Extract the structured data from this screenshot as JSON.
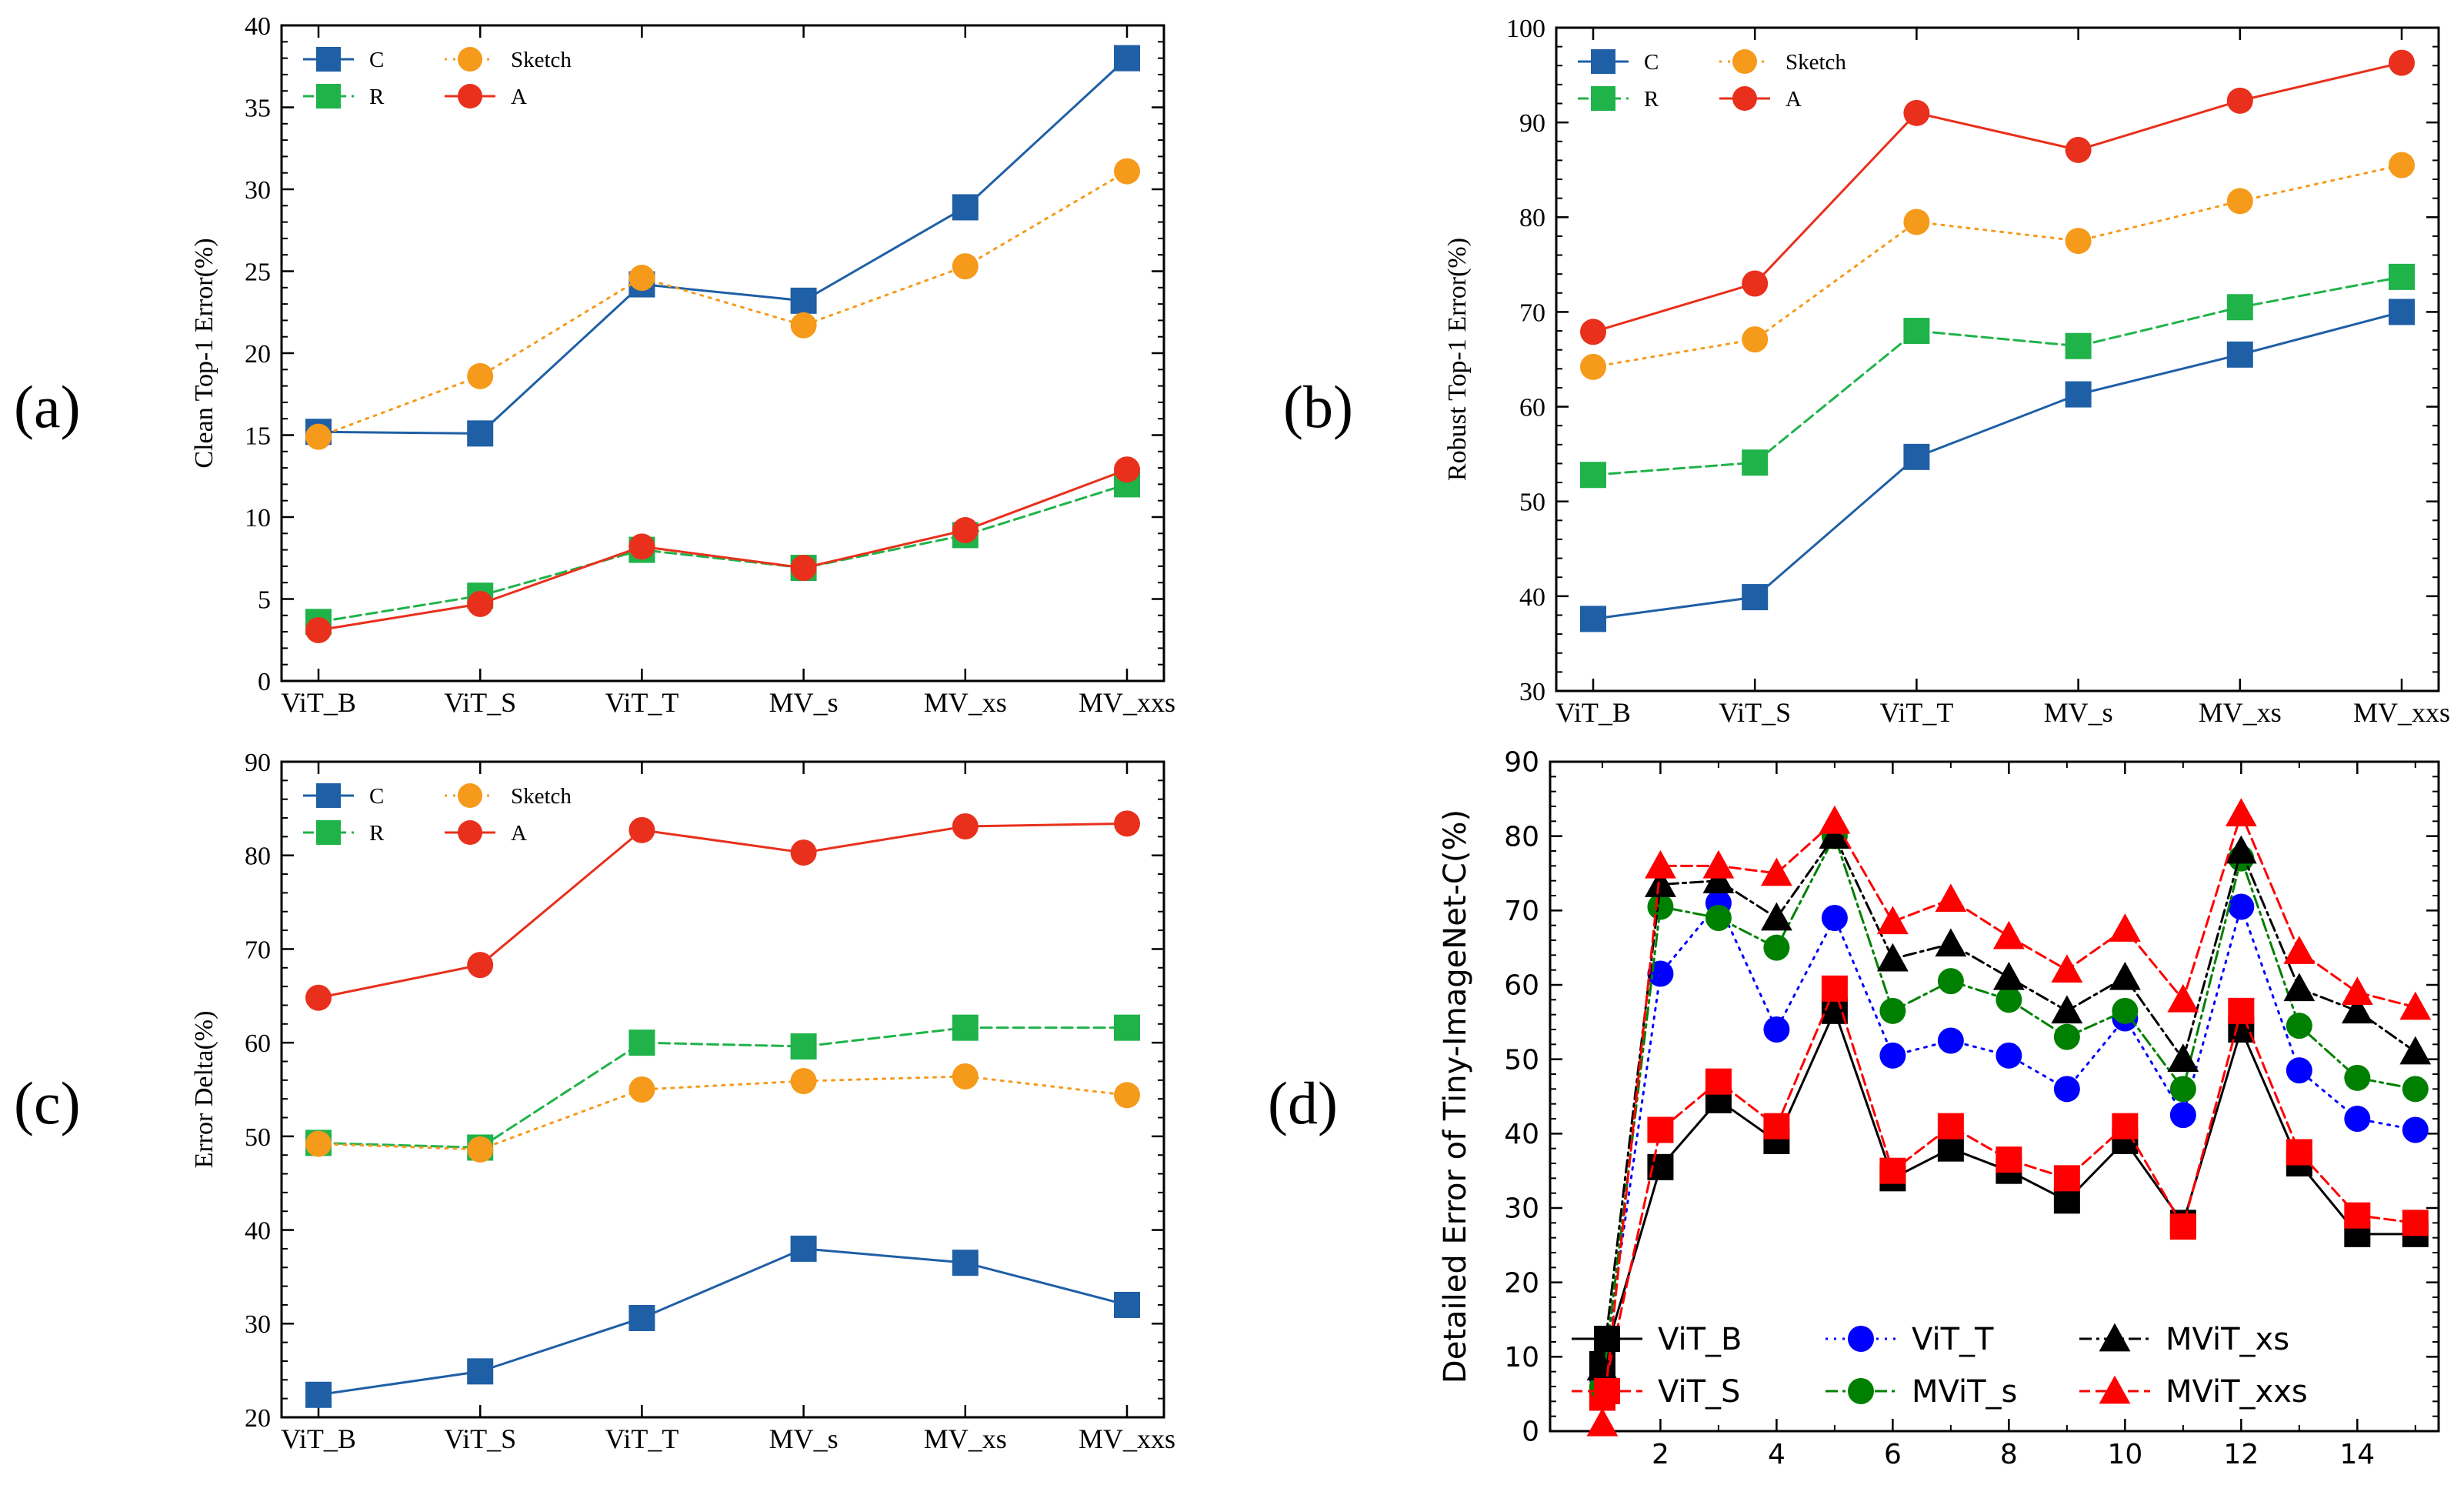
{
  "panel_labels": [
    "(a)",
    "(b)",
    "(c)",
    "(d)"
  ],
  "chart_data": [
    {
      "id": "a",
      "type": "line",
      "title": "",
      "xlabel": "",
      "ylabel": "Clean Top-1 Error(%)",
      "categories": [
        "ViT_B",
        "ViT_S",
        "ViT_T",
        "MV_s",
        "MV_xs",
        "MV_xxs"
      ],
      "ylim": [
        0,
        40
      ],
      "yticks": [
        0,
        5,
        10,
        15,
        20,
        25,
        30,
        35,
        40
      ],
      "legend_position": "top-left",
      "series": [
        {
          "name": "C",
          "color": "#1f5fa6",
          "marker": "square",
          "dash": "solid",
          "values": [
            15.2,
            15.1,
            24.2,
            23.2,
            28.9,
            38.0
          ]
        },
        {
          "name": "R",
          "color": "#1fb34a",
          "marker": "square",
          "dash": "dashed",
          "values": [
            3.6,
            5.2,
            8.0,
            6.9,
            8.9,
            12.0
          ]
        },
        {
          "name": "Sketch",
          "color": "#f59a1a",
          "marker": "circle",
          "dash": "dotted",
          "values": [
            14.9,
            18.6,
            24.6,
            21.7,
            25.3,
            31.1
          ]
        },
        {
          "name": "A",
          "color": "#e8301c",
          "marker": "circle",
          "dash": "solid",
          "values": [
            3.1,
            4.7,
            8.2,
            6.9,
            9.2,
            12.9
          ]
        }
      ]
    },
    {
      "id": "b",
      "type": "line",
      "title": "",
      "xlabel": "",
      "ylabel": "Robust Top-1 Error(%)",
      "categories": [
        "ViT_B",
        "ViT_S",
        "ViT_T",
        "MV_s",
        "MV_xs",
        "MV_xxs"
      ],
      "ylim": [
        30,
        100
      ],
      "yticks": [
        30,
        40,
        50,
        60,
        70,
        80,
        90,
        100
      ],
      "legend_position": "top-left",
      "series": [
        {
          "name": "C",
          "color": "#1f5fa6",
          "marker": "square",
          "dash": "solid",
          "values": [
            37.6,
            39.9,
            54.7,
            61.3,
            65.5,
            70.0
          ]
        },
        {
          "name": "R",
          "color": "#1fb34a",
          "marker": "square",
          "dash": "dashed",
          "values": [
            52.8,
            54.1,
            68.0,
            66.4,
            70.5,
            73.7
          ]
        },
        {
          "name": "Sketch",
          "color": "#f59a1a",
          "marker": "circle",
          "dash": "dotted",
          "values": [
            64.2,
            67.1,
            79.5,
            77.5,
            81.7,
            85.5
          ]
        },
        {
          "name": "A",
          "color": "#e8301c",
          "marker": "circle",
          "dash": "solid",
          "values": [
            67.9,
            73.0,
            91.0,
            87.1,
            92.3,
            96.3
          ]
        }
      ]
    },
    {
      "id": "c",
      "type": "line",
      "title": "",
      "xlabel": "",
      "ylabel": "Error Delta(%)",
      "categories": [
        "ViT_B",
        "ViT_S",
        "ViT_T",
        "MV_s",
        "MV_xs",
        "MV_xxs"
      ],
      "ylim": [
        20,
        90
      ],
      "yticks": [
        20,
        30,
        40,
        50,
        60,
        70,
        80,
        90
      ],
      "legend_position": "top-left",
      "series": [
        {
          "name": "C",
          "color": "#1f5fa6",
          "marker": "square",
          "dash": "solid",
          "values": [
            22.4,
            24.9,
            30.6,
            38.0,
            36.5,
            32.0
          ]
        },
        {
          "name": "R",
          "color": "#1fb34a",
          "marker": "square",
          "dash": "dashed",
          "values": [
            49.3,
            48.8,
            60.0,
            59.6,
            61.6,
            61.6
          ]
        },
        {
          "name": "Sketch",
          "color": "#f59a1a",
          "marker": "circle",
          "dash": "dotted",
          "values": [
            49.2,
            48.6,
            55.0,
            55.9,
            56.4,
            54.4
          ]
        },
        {
          "name": "A",
          "color": "#e8301c",
          "marker": "circle",
          "dash": "solid",
          "values": [
            64.8,
            68.3,
            82.7,
            80.3,
            83.1,
            83.4
          ]
        }
      ]
    },
    {
      "id": "d",
      "type": "line",
      "title": "",
      "xlabel": "",
      "ylabel": "Detailed Error of Tiny-ImageNet-C(%)",
      "x": [
        1,
        2,
        3,
        4,
        5,
        6,
        7,
        8,
        9,
        10,
        11,
        12,
        13,
        14,
        15
      ],
      "xlim": [
        0.1,
        15.4
      ],
      "xticks": [
        2,
        4,
        6,
        8,
        10,
        12,
        14
      ],
      "ylim": [
        0,
        90
      ],
      "yticks": [
        0,
        10,
        20,
        30,
        40,
        50,
        60,
        70,
        80,
        90
      ],
      "legend_position": "bottom",
      "series": [
        {
          "name": "ViT_B",
          "color": "#000000",
          "marker": "square",
          "dash": "solid",
          "values": [
            9.0,
            35.5,
            44.5,
            39.0,
            56.5,
            34.0,
            38.0,
            35.0,
            31.0,
            39.0,
            28.0,
            54.0,
            36.0,
            26.5,
            26.5
          ]
        },
        {
          "name": "ViT_S",
          "color": "#ff0000",
          "marker": "square",
          "dash": "dashed",
          "values": [
            4.5,
            40.5,
            47.0,
            41.0,
            59.5,
            35.0,
            41.0,
            36.5,
            34.0,
            41.0,
            27.5,
            56.5,
            37.5,
            29.0,
            28.0
          ]
        },
        {
          "name": "ViT_T",
          "color": "#0000ff",
          "marker": "circle",
          "dash": "dotted",
          "values": [
            7.0,
            61.5,
            71.0,
            54.0,
            69.0,
            50.5,
            52.5,
            50.5,
            46.0,
            55.5,
            42.5,
            70.5,
            48.5,
            42.0,
            40.5
          ]
        },
        {
          "name": "MViT_s",
          "color": "#008000",
          "marker": "circle",
          "dash": "dashdot",
          "values": [
            6.0,
            70.5,
            69.0,
            65.0,
            80.0,
            56.5,
            60.5,
            58.0,
            53.0,
            56.5,
            46.0,
            77.0,
            54.5,
            47.5,
            46.0
          ]
        },
        {
          "name": "MViT_xs",
          "color": "#000000",
          "marker": "triangle",
          "dash": "dashdot",
          "values": [
            8.5,
            73.5,
            74.0,
            69.0,
            80.0,
            63.5,
            65.5,
            61.0,
            56.5,
            61.0,
            50.0,
            78.0,
            59.5,
            56.5,
            51.0
          ]
        },
        {
          "name": "MViT_xxs",
          "color": "#ff0000",
          "marker": "triangle",
          "dash": "dashed",
          "values": [
            1.0,
            76.0,
            76.0,
            75.0,
            82.0,
            68.5,
            71.5,
            66.5,
            62.0,
            67.5,
            58.0,
            83.0,
            64.5,
            59.0,
            57.0
          ]
        }
      ]
    }
  ]
}
